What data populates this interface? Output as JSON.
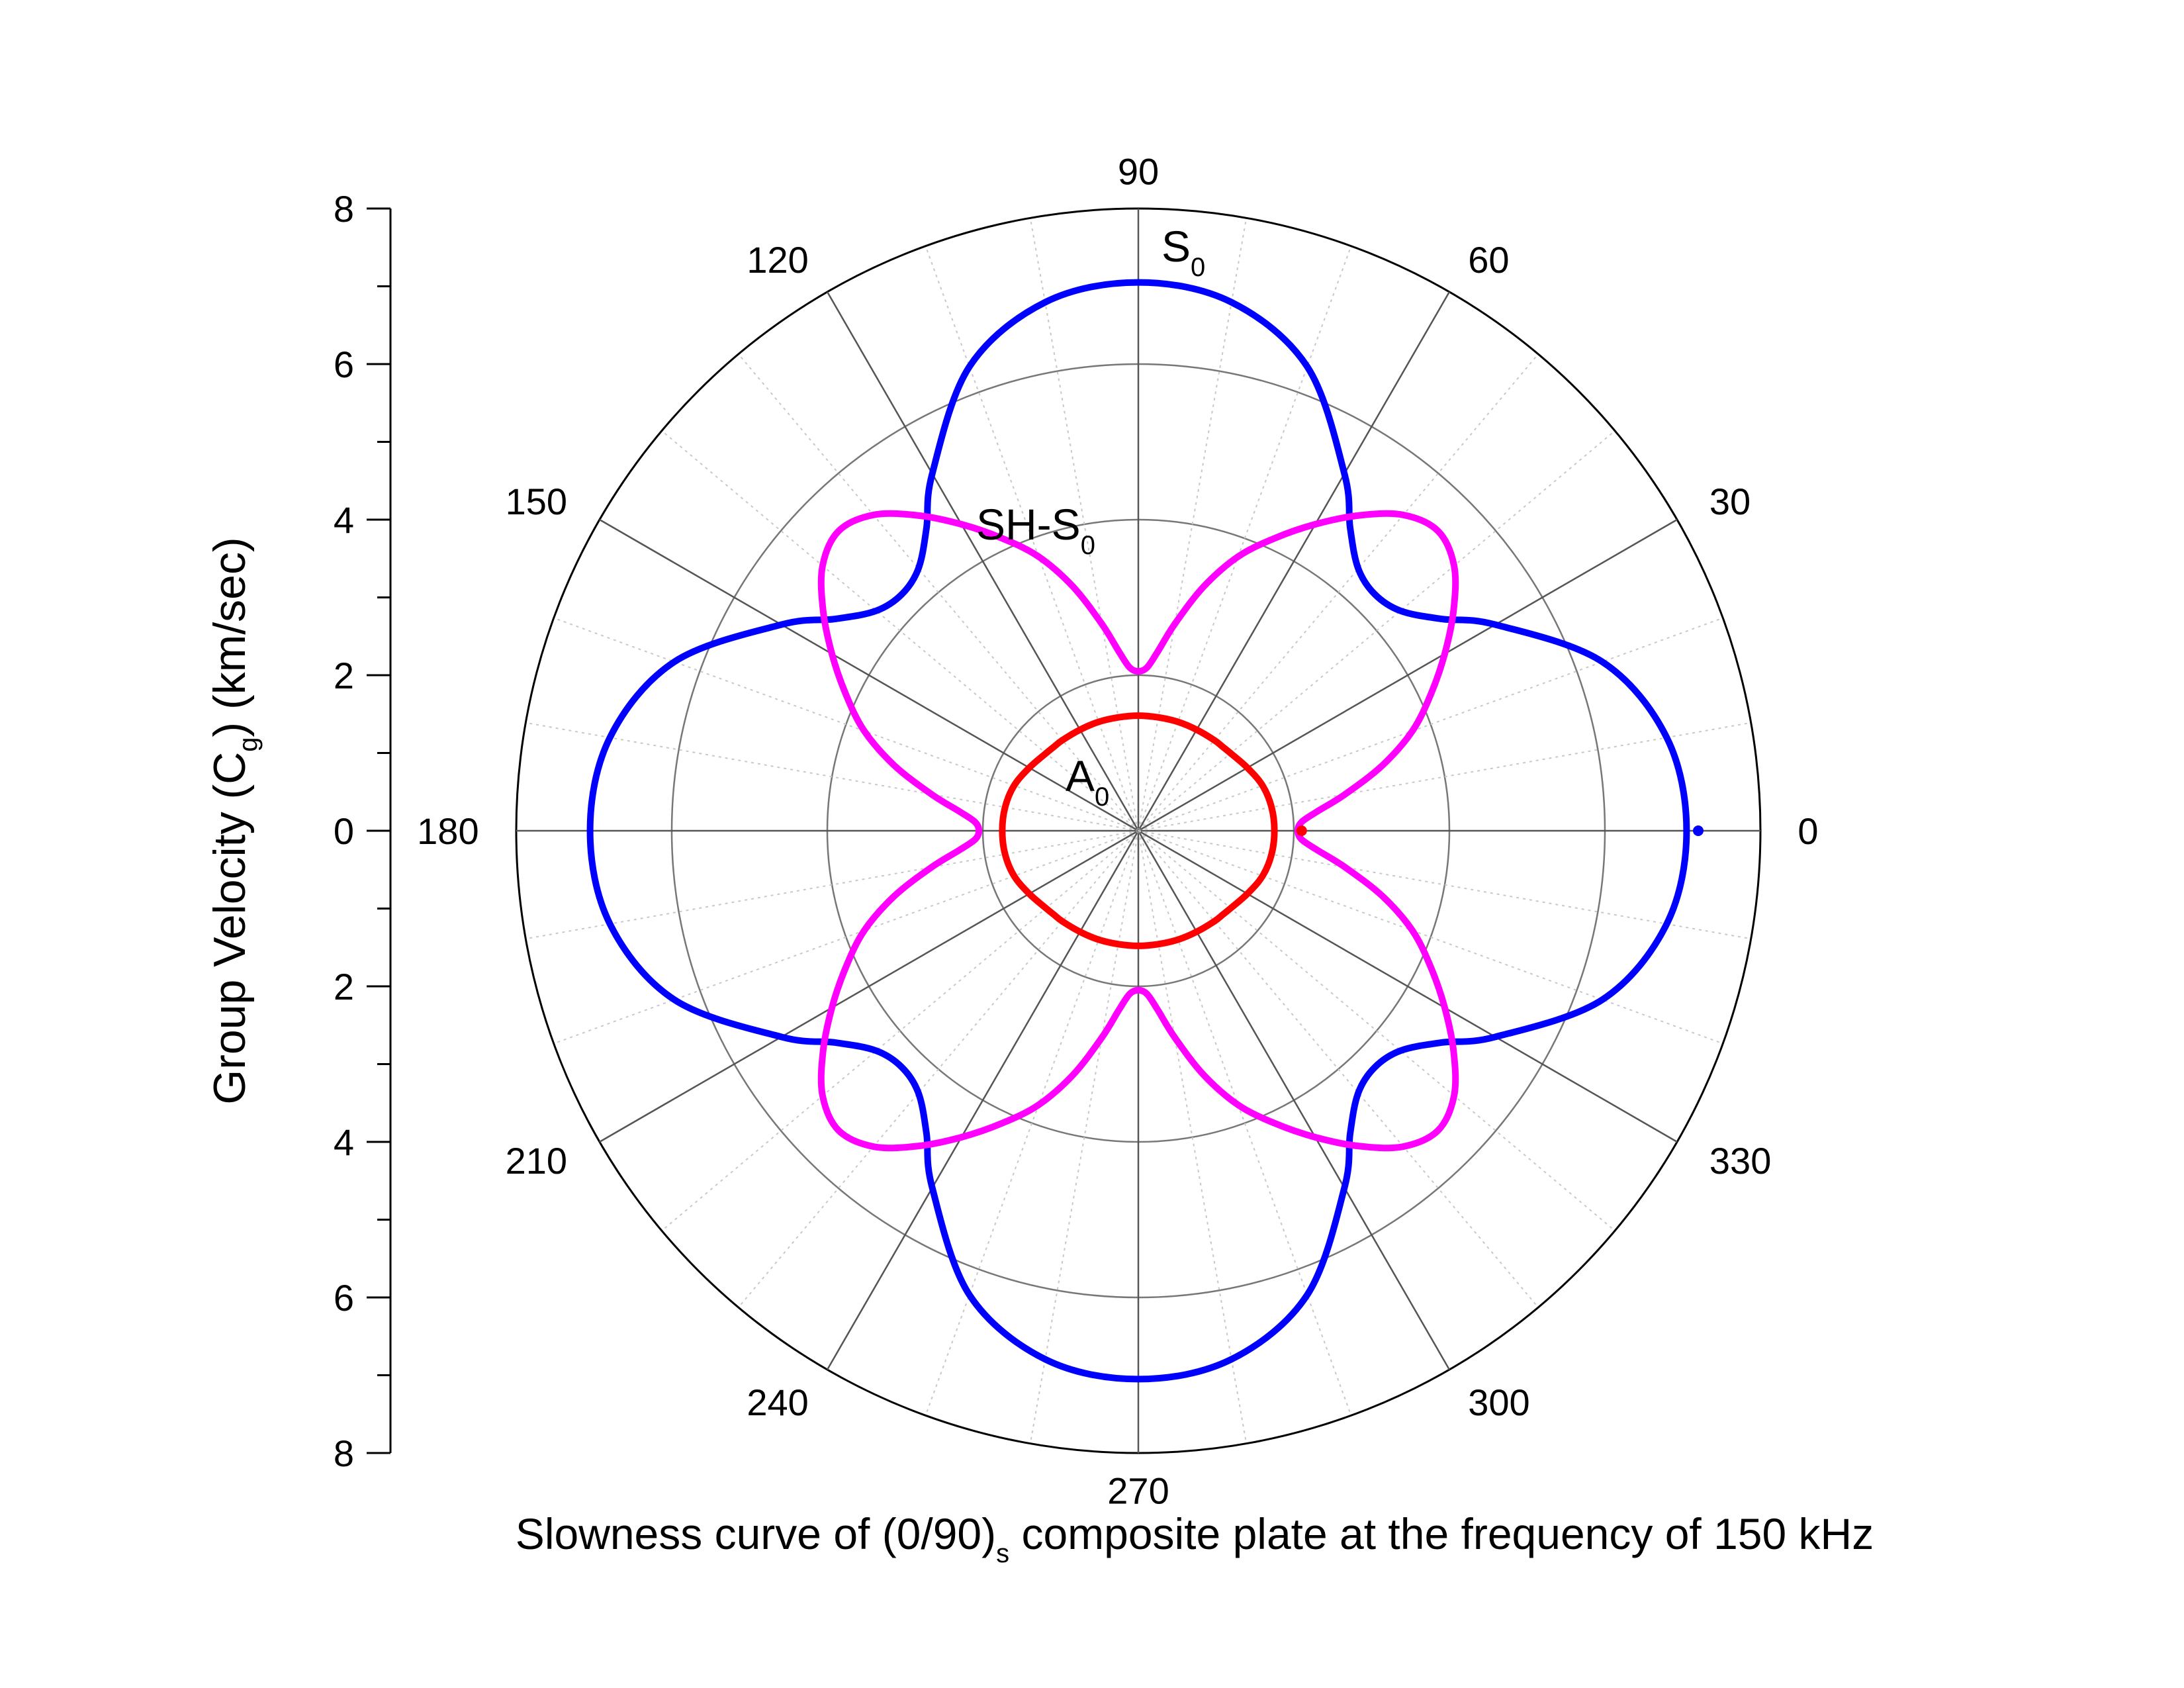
{
  "chart_data": {
    "type": "polar-line",
    "title": "",
    "caption": {
      "pre": "Slowness curve of (0/90)",
      "sub": "s",
      "post": " composite plate at the frequency of 150 kHz"
    },
    "ylabel": {
      "pre": "Group Velocity (C",
      "sub": "g",
      "post": ") (km/sec)"
    },
    "radial_range": [
      0,
      8
    ],
    "radial_ticks": [
      "8",
      "6",
      "4",
      "2",
      "0",
      "2",
      "4",
      "6",
      "8"
    ],
    "radial_tick_values": [
      8,
      6,
      4,
      2,
      0,
      -2,
      -4,
      -6,
      -8
    ],
    "angular_ticks": [
      "0",
      "30",
      "60",
      "90",
      "120",
      "150",
      "180",
      "210",
      "240",
      "270",
      "300",
      "330"
    ],
    "angular_tick_values_deg": [
      0,
      30,
      60,
      90,
      120,
      150,
      180,
      210,
      240,
      270,
      300,
      330
    ],
    "grid": true,
    "series": [
      {
        "label": "S",
        "label_sub": "0",
        "color": "#0000ff",
        "theta_deg": [
          0,
          10,
          20,
          30,
          35,
          40,
          45,
          50,
          55,
          60,
          70,
          80,
          90
        ],
        "r": [
          7.05,
          6.9,
          6.35,
          5.3,
          4.75,
          4.4,
          4.3,
          4.4,
          4.75,
          5.3,
          6.35,
          6.9,
          7.05
        ]
      },
      {
        "label": "SH-S",
        "label_sub": "0",
        "color": "#ff00ff",
        "theta_deg": [
          0,
          3,
          6,
          10,
          15,
          20,
          25,
          30,
          35,
          40,
          45,
          50,
          55,
          60,
          65,
          70,
          75,
          80,
          84,
          87,
          90
        ],
        "r": [
          2.05,
          2.1,
          2.3,
          2.7,
          3.25,
          3.75,
          4.15,
          4.55,
          4.95,
          5.3,
          5.45,
          5.3,
          4.95,
          4.55,
          4.15,
          3.75,
          3.25,
          2.7,
          2.3,
          2.1,
          2.05
        ]
      },
      {
        "label": "A",
        "label_sub": "0",
        "color": "#ff0000",
        "theta_deg": [
          0,
          10,
          20,
          30,
          40,
          45,
          50,
          60,
          70,
          80,
          90
        ],
        "r": [
          1.75,
          1.74,
          1.7,
          1.62,
          1.55,
          1.53,
          1.52,
          1.5,
          1.49,
          1.48,
          1.48
        ]
      }
    ],
    "markers": [
      {
        "series": "S",
        "theta_deg": 0,
        "r": 7.2
      },
      {
        "series": "SH-S",
        "theta_deg": 0,
        "r": 2.1
      }
    ]
  }
}
